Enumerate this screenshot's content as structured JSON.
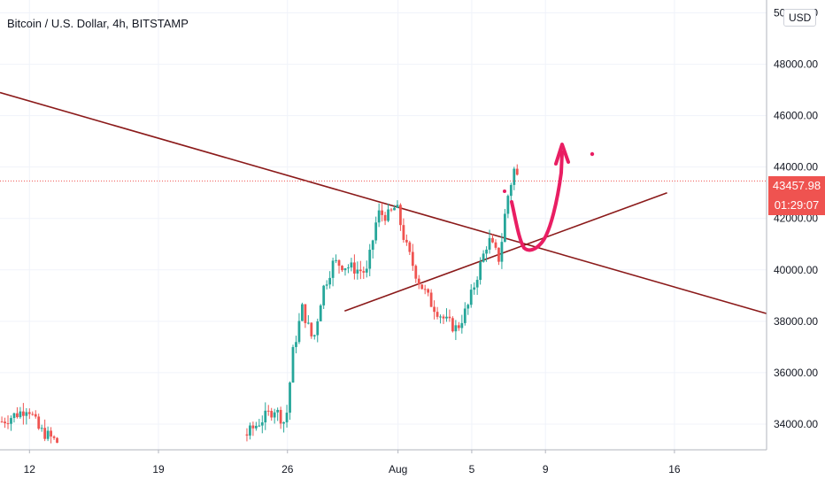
{
  "header": {
    "title": "Bitcoin / U.S. Dollar, 4h, BITSTAMP",
    "currency_button": "USD"
  },
  "price_tag": {
    "price": "43457.98",
    "countdown": "01:29:07"
  },
  "colors": {
    "up": "#26a69a",
    "down": "#ef5350",
    "trendline": "#8b1a1a",
    "drawing": "#e91e63",
    "price_line": "#ef5350",
    "axis_text": "#131722",
    "grid": "#f0f3fa"
  },
  "chart_data": {
    "type": "candlestick",
    "symbol": "Bitcoin / U.S. Dollar",
    "interval": "4h",
    "exchange": "BITSTAMP",
    "currency": "USD",
    "last_price": 43457.98,
    "ylim": [
      33000,
      50500
    ],
    "y_ticks": [
      "34000.00",
      "36000.00",
      "38000.00",
      "40000.00",
      "42000.00",
      "44000.00",
      "46000.00",
      "48000.00",
      "50000.00"
    ],
    "x_ticks": [
      {
        "label": "12",
        "day": 12
      },
      {
        "label": "19",
        "day": 19
      },
      {
        "label": "26",
        "day": 26
      },
      {
        "label": "Aug",
        "day": 32
      },
      {
        "label": "5",
        "day": 36
      },
      {
        "label": "9",
        "day": 40
      },
      {
        "label": "16",
        "day": 47
      }
    ],
    "x_range": [
      10.4,
      52
    ],
    "candle_key_days": [
      10.5,
      11.6,
      11.9,
      12.5,
      13.5,
      23.8,
      24.5,
      25.3,
      25.9,
      26.3,
      26.8,
      27.4,
      27.9,
      28.5,
      29.4,
      30.3,
      30.9,
      31.5,
      31.9,
      32.4,
      33.1,
      33.8,
      34.6,
      35.2,
      35.8,
      36.3,
      36.9,
      37.5,
      37.9,
      38.3,
      38.6
    ],
    "candle_key_closes": [
      34100,
      34500,
      34700,
      33800,
      33300,
      33600,
      34100,
      34600,
      34000,
      36800,
      38500,
      37200,
      39200,
      40300,
      40100,
      39900,
      42200,
      42100,
      42500,
      41000,
      39600,
      38700,
      38000,
      37700,
      38600,
      39800,
      41200,
      40400,
      42700,
      43900,
      43400
    ],
    "trendlines": [
      {
        "from": {
          "day": 10.4,
          "price": 46900
        },
        "to": {
          "day": 52,
          "price": 38300
        }
      },
      {
        "from": {
          "day": 29.1,
          "price": 38400
        },
        "to": {
          "day": 46.6,
          "price": 43000
        }
      }
    ]
  }
}
